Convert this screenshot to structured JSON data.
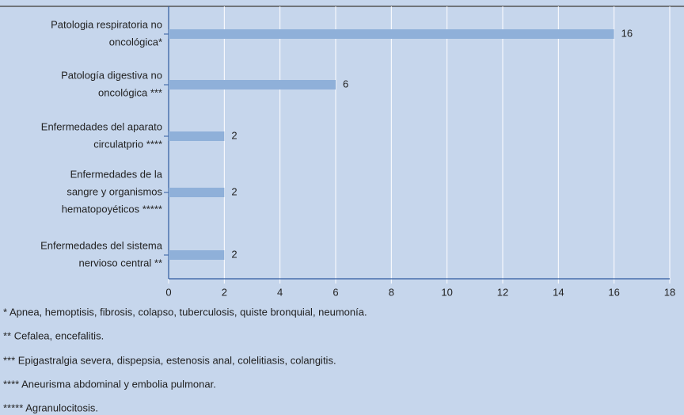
{
  "chart_data": {
    "type": "bar",
    "orientation": "horizontal",
    "categories": [
      [
        "Patologia respiratoria no",
        "oncológica*"
      ],
      [
        "Patología digestiva no",
        "oncológica ***"
      ],
      [
        "Enfermedades del aparato",
        "circulatprio ****"
      ],
      [
        "Enfermedades de la",
        "sangre y organismos",
        "hematopoyéticos *****"
      ],
      [
        "Enfermedades del sistema",
        "nervioso central **"
      ]
    ],
    "values": [
      16,
      6,
      2,
      2,
      2
    ],
    "color": "#8fb0d9",
    "xlim": [
      0,
      18
    ],
    "xticks": [
      0,
      2,
      4,
      6,
      8,
      10,
      12,
      14,
      16,
      18
    ],
    "grid": true,
    "notes": [
      "* Apnea, hemoptisis, fibrosis, colapso, tuberculosis, quiste bronquial, neumonía.",
      "** Cefalea, encefalitis.",
      "*** Epigastralgia severa, dispepsia, estenosis anal, colelitiasis, colangitis.",
      "**** Aneurisma abdominal y embolia pulmonar.",
      "***** Agranulocitosis."
    ]
  }
}
